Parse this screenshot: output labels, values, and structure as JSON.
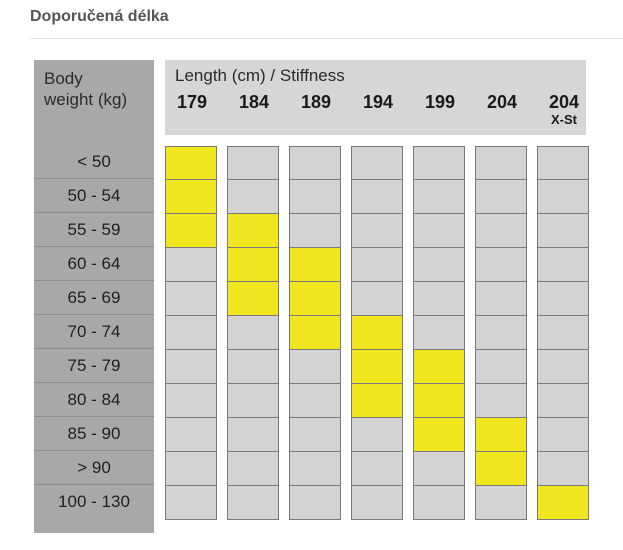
{
  "heading": "Doporučená délka",
  "body_weight_label": [
    "Body",
    "weight (kg)"
  ],
  "header_title": "Length (cm) / Stiffness",
  "lengths": [
    {
      "value": "179",
      "sub": ""
    },
    {
      "value": "184",
      "sub": ""
    },
    {
      "value": "189",
      "sub": ""
    },
    {
      "value": "194",
      "sub": ""
    },
    {
      "value": "199",
      "sub": ""
    },
    {
      "value": "204",
      "sub": ""
    },
    {
      "value": "204",
      "sub": "X-St"
    }
  ],
  "weights": [
    "< 50",
    "50 - 54",
    "55 - 59",
    "60 - 64",
    "65 - 69",
    "70 - 74",
    "75 - 79",
    "80 - 84",
    "85 - 90",
    "> 90",
    "100 - 130"
  ],
  "recommended": [
    [
      0
    ],
    [
      0
    ],
    [
      0,
      1
    ],
    [
      1,
      2
    ],
    [
      1,
      2
    ],
    [
      2,
      3
    ],
    [
      3,
      4
    ],
    [
      3,
      4
    ],
    [
      4,
      5
    ],
    [
      5
    ],
    [
      6
    ]
  ],
  "colors": {
    "highlight": "#f0e51e",
    "cell": "#d3d3d3",
    "left_col": "#a8a8a8",
    "header": "#d6d6d6"
  }
}
